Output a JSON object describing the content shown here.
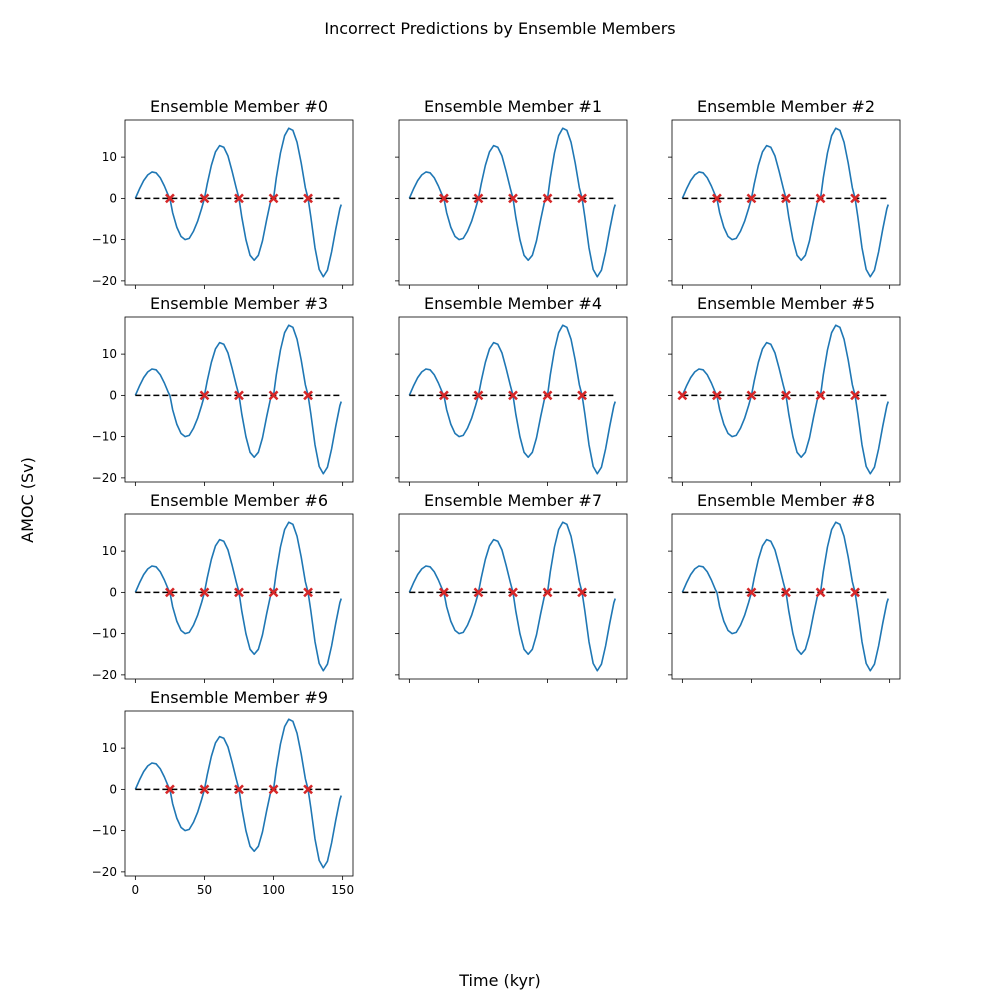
{
  "figure": {
    "title": "Incorrect Predictions by Ensemble Members",
    "xlabel": "Time (kyr)",
    "ylabel": "AMOC (Sv)"
  },
  "chart_data": {
    "type": "line",
    "xlim": [
      -7.5,
      157.5
    ],
    "ylim": [
      -21,
      19
    ],
    "x_ticks": [
      0,
      50,
      100,
      150
    ],
    "y_ticks": [
      -20,
      -10,
      0,
      10
    ],
    "grid": false,
    "colors": {
      "series": "#1f77b4",
      "zero_line": "#000000",
      "marker": "#d62728"
    },
    "series_curve": {
      "x": [
        0,
        3,
        6,
        9,
        12,
        15,
        18,
        21,
        24,
        25,
        27,
        30,
        33,
        36,
        39,
        42,
        45,
        48,
        50,
        52,
        55,
        58,
        61,
        64,
        67,
        70,
        73,
        75,
        77,
        80,
        83,
        86,
        89,
        92,
        95,
        98,
        100,
        102,
        105,
        108,
        111,
        114,
        117,
        120,
        123,
        125,
        127,
        130,
        133,
        136,
        139,
        142,
        145,
        148,
        149
      ],
      "y": [
        0,
        2.3,
        4.3,
        5.7,
        6.4,
        6.2,
        5.0,
        3.0,
        0.6,
        0,
        -3.5,
        -7.0,
        -9.2,
        -10.0,
        -9.7,
        -8.0,
        -5.6,
        -2.4,
        0,
        3.5,
        8.0,
        11.3,
        12.8,
        12.4,
        10.3,
        6.6,
        2.5,
        0,
        -4.5,
        -10.0,
        -13.8,
        -15.0,
        -13.8,
        -10.3,
        -5.2,
        -0.5,
        0,
        5.0,
        11.0,
        15.2,
        17.0,
        16.5,
        13.6,
        8.6,
        2.6,
        0,
        -4.5,
        -12.0,
        -17.2,
        -19.0,
        -17.4,
        -13.0,
        -7.5,
        -2.5,
        -1.5
      ]
    },
    "zero_line": {
      "x": [
        0,
        149
      ],
      "y": 0
    },
    "panels": [
      {
        "title": "Ensemble Member #0",
        "markers": [
          25,
          50,
          75,
          100,
          125
        ]
      },
      {
        "title": "Ensemble Member #1",
        "markers": [
          25,
          50,
          75,
          100,
          125
        ]
      },
      {
        "title": "Ensemble Member #2",
        "markers": [
          25,
          50,
          75,
          100,
          125
        ]
      },
      {
        "title": "Ensemble Member #3",
        "markers": [
          50,
          75,
          100,
          125
        ]
      },
      {
        "title": "Ensemble Member #4",
        "markers": [
          25,
          50,
          75,
          100,
          125
        ]
      },
      {
        "title": "Ensemble Member #5",
        "markers": [
          0,
          25,
          50,
          75,
          100,
          125
        ]
      },
      {
        "title": "Ensemble Member #6",
        "markers": [
          25,
          50,
          75,
          100,
          125
        ]
      },
      {
        "title": "Ensemble Member #7",
        "markers": [
          25,
          50,
          75,
          100,
          125
        ]
      },
      {
        "title": "Ensemble Member #8",
        "markers": [
          50,
          75,
          100,
          125
        ]
      },
      {
        "title": "Ensemble Member #9",
        "markers": [
          25,
          50,
          75,
          100,
          125
        ]
      }
    ]
  }
}
